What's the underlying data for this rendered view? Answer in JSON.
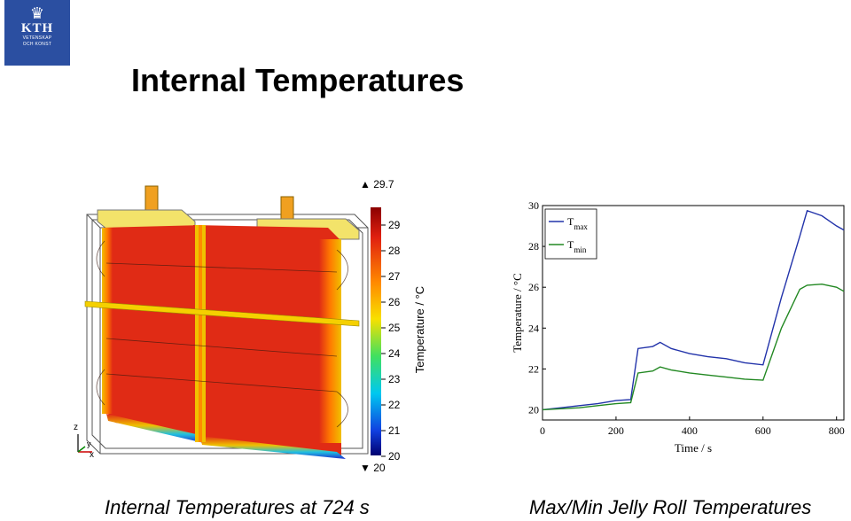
{
  "logo": {
    "text": "KTH",
    "subtext_line1": "VETENSKAP",
    "subtext_line2": "OCH KONST",
    "color": "#2b4fa1"
  },
  "title": "Internal Temperatures",
  "left_figure": {
    "caption": "Internal Temperatures at 724 s",
    "colorbar": {
      "max_label": "▲ 29.7",
      "min_label": "▼ 20",
      "ticks": [
        "29",
        "28",
        "27",
        "26",
        "25",
        "24",
        "23",
        "22",
        "21",
        "20"
      ],
      "label": "Temperature / °C"
    },
    "axes_triad": {
      "z": "z",
      "y": "y",
      "x": "x"
    }
  },
  "chart_data": {
    "type": "line",
    "caption": "Max/Min Jelly Roll Temperatures",
    "xlabel": "Time / s",
    "ylabel": "Temperature / °C",
    "xlim": [
      0,
      820
    ],
    "ylim": [
      19.5,
      30
    ],
    "xticks": [
      0,
      200,
      400,
      600,
      800
    ],
    "yticks": [
      20,
      22,
      24,
      26,
      28,
      30
    ],
    "legend_placement": "top-left",
    "series": [
      {
        "name": "T",
        "subscript": "max",
        "color": "#2233aa",
        "x": [
          0,
          50,
          100,
          150,
          200,
          240,
          260,
          300,
          320,
          350,
          400,
          450,
          500,
          550,
          600,
          650,
          700,
          720,
          760,
          800,
          820
        ],
        "y": [
          20.0,
          20.1,
          20.2,
          20.3,
          20.45,
          20.5,
          23.0,
          23.1,
          23.3,
          23.0,
          22.75,
          22.6,
          22.5,
          22.3,
          22.2,
          25.5,
          28.5,
          29.75,
          29.5,
          29.0,
          28.8
        ]
      },
      {
        "name": "T",
        "subscript": "min",
        "color": "#228822",
        "x": [
          0,
          50,
          100,
          150,
          200,
          240,
          260,
          300,
          320,
          350,
          400,
          450,
          500,
          550,
          600,
          650,
          700,
          720,
          760,
          800,
          820
        ],
        "y": [
          20.0,
          20.05,
          20.1,
          20.2,
          20.3,
          20.35,
          21.8,
          21.9,
          22.1,
          21.95,
          21.8,
          21.7,
          21.6,
          21.5,
          21.45,
          24.0,
          25.9,
          26.1,
          26.15,
          26.0,
          25.8
        ]
      }
    ]
  },
  "colors": {
    "hot": "#e02b15",
    "cold": "#1e2fd0",
    "frame": "#444444"
  }
}
